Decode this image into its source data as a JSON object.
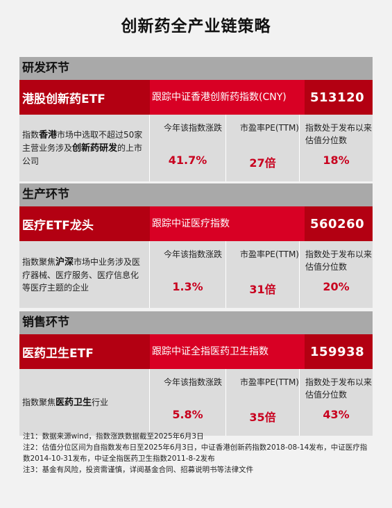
{
  "title": "创新药全产业链策略",
  "sections": [
    {
      "header": "研发环节",
      "fund_name": "港股创新药ETF",
      "track": "跟踪中证香港创新药指数(CNY)",
      "code": "513120",
      "desc": [
        {
          "t": "指数",
          "b": false
        },
        {
          "t": "香港",
          "b": true
        },
        {
          "t": "市场中选取不超过50家主营业务涉及",
          "b": false
        },
        {
          "t": "创新药研发",
          "b": true
        },
        {
          "t": "的上市公司",
          "b": false
        }
      ],
      "ytd_label": "今年该指数涨跌",
      "ytd_value": "41.7%",
      "pe_label": "市盈率PE(TTM)",
      "pe_value": "27倍",
      "pct_label": "指数处于发布以来估值分位数",
      "pct_value": "18%"
    },
    {
      "header": "生产环节",
      "fund_name": "医疗ETF龙头",
      "track": "跟踪中证医疗指数",
      "code": "560260",
      "desc": [
        {
          "t": "指数聚焦",
          "b": false
        },
        {
          "t": "沪深",
          "b": true
        },
        {
          "t": "市场中业务涉及医疗器械、医疗服务、医疗信息化等医疗主题的企业",
          "b": false
        }
      ],
      "ytd_label": "今年该指数涨跌",
      "ytd_value": "1.3%",
      "pe_label": "市盈率PE(TTM)",
      "pe_value": "31倍",
      "pct_label": "指数处于发布以来估值分位数",
      "pct_value": "20%"
    },
    {
      "header": "销售环节",
      "fund_name": "医药卫生ETF",
      "track": "跟踪中证全指医药卫生指数",
      "code": "159938",
      "desc": [
        {
          "t": "指数聚焦",
          "b": false
        },
        {
          "t": "医药卫生",
          "b": true
        },
        {
          "t": "行业",
          "b": false
        }
      ],
      "ytd_label": "今年该指数涨跌",
      "ytd_value": "5.8%",
      "pe_label": "市盈率PE(TTM)",
      "pe_value": "35倍",
      "pct_label": "指数处于发布以来估值分位数",
      "pct_value": "43%"
    }
  ],
  "notes": [
    "注1：数据来源wind，指数涨跌数据截至2025年6月3日",
    "注2：估值分位区间为自指数发布日至2025年6月3日，中证香港创新药指数2018-08-14发布，中证医疗指数2014-10-31发布，中证全指医药卫生指数2011-8-2发布",
    "注3：基金有风险，投资需谨慎，详阅基金合同、招募说明书等法律文件"
  ]
}
